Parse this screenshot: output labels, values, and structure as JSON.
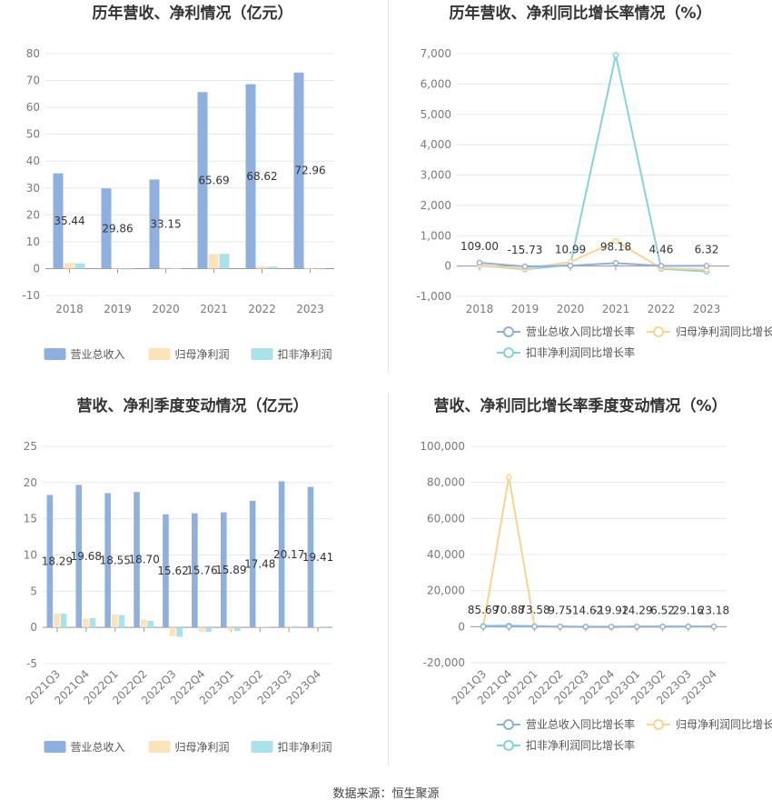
{
  "source_label": "数据来源：恒生聚源",
  "colors": {
    "revenue": "#8eb0de",
    "net_profit": "#fde3b6",
    "deducted_profit": "#a9e2ea",
    "revenue_line": "#8eb0de",
    "net_profit_line": "#fbd48f",
    "deducted_line": "#86d3dc",
    "grid": "#e8e8e8",
    "axis_text": "#7a7a7a",
    "title": "#333333"
  },
  "chart_data": [
    {
      "type": "bar",
      "title": "历年营收、净利情况（亿元）",
      "categories": [
        "2018",
        "2019",
        "2020",
        "2021",
        "2022",
        "2023"
      ],
      "ylim": [
        -10,
        80
      ],
      "yticks": [
        -10,
        0,
        10,
        20,
        30,
        40,
        50,
        60,
        70,
        80
      ],
      "series": [
        {
          "name": "营业总收入",
          "values": [
            35.44,
            29.86,
            33.15,
            65.69,
            68.62,
            72.96
          ]
        },
        {
          "name": "归母净利润",
          "values": [
            2.1,
            -0.2,
            0.3,
            5.4,
            0.8,
            0.2
          ]
        },
        {
          "name": "扣非净利润",
          "values": [
            1.9,
            -0.3,
            0.1,
            5.5,
            0.7,
            -0.2
          ]
        }
      ],
      "data_labels": [
        "35.44",
        "29.86",
        "33.15",
        "65.69",
        "68.62",
        "72.96"
      ],
      "legend": "bottom"
    },
    {
      "type": "line",
      "title": "历年营收、净利同比增长率情况（%）",
      "categories": [
        "2018",
        "2019",
        "2020",
        "2021",
        "2022",
        "2023"
      ],
      "ylim": [
        -1000,
        7000
      ],
      "yticks": [
        -1000,
        0,
        1000,
        2000,
        3000,
        4000,
        5000,
        6000,
        7000
      ],
      "ytick_labels": [
        "-1,000",
        "0",
        "1,000",
        "2,000",
        "3,000",
        "4,000",
        "5,000",
        "6,000",
        "7,000"
      ],
      "series": [
        {
          "name": "营业总收入同比增长率",
          "values": [
            109.0,
            -15.73,
            10.99,
            98.18,
            4.46,
            6.32
          ]
        },
        {
          "name": "归母净利润同比增长率",
          "values": [
            30,
            -90,
            130,
            820,
            -70,
            -120
          ]
        },
        {
          "name": "扣非净利润同比增长率",
          "values": [
            20,
            -110,
            40,
            6950,
            -90,
            -180
          ]
        }
      ],
      "data_labels": [
        "109.00",
        "-15.73",
        "10.99",
        "98.18",
        "4.46",
        "6.32"
      ],
      "legend": "bottom"
    },
    {
      "type": "bar",
      "title": "营收、净利季度变动情况（亿元）",
      "categories": [
        "2021Q3",
        "2021Q4",
        "2022Q1",
        "2022Q2",
        "2022Q3",
        "2022Q4",
        "2023Q1",
        "2023Q2",
        "2023Q3",
        "2023Q4"
      ],
      "ylim": [
        -5,
        25
      ],
      "yticks": [
        -5,
        0,
        5,
        10,
        15,
        20,
        25
      ],
      "series": [
        {
          "name": "营业总收入",
          "values": [
            18.29,
            19.68,
            18.55,
            18.7,
            15.62,
            15.76,
            15.89,
            17.48,
            20.17,
            19.41
          ]
        },
        {
          "name": "归母净利润",
          "values": [
            1.9,
            1.2,
            1.8,
            1.1,
            -1.2,
            -0.6,
            -0.4,
            0.1,
            0.2,
            0.1
          ]
        },
        {
          "name": "扣非净利润",
          "values": [
            1.9,
            1.3,
            1.7,
            0.9,
            -1.3,
            -0.6,
            -0.5,
            0.1,
            0.2,
            -0.1
          ]
        }
      ],
      "data_labels": [
        "18.29",
        "19.68",
        "18.55",
        "18.70",
        "15.62",
        "15.76",
        "15.89",
        "17.48",
        "20.17",
        "19.41"
      ],
      "legend": "bottom"
    },
    {
      "type": "line",
      "title": "营收、净利同比增长率季度变动情况（%）",
      "categories": [
        "2021Q3",
        "2021Q4",
        "2022Q1",
        "2022Q2",
        "2022Q3",
        "2022Q4",
        "2023Q1",
        "2023Q2",
        "2023Q3",
        "2023Q4"
      ],
      "ylim": [
        -20000,
        100000
      ],
      "yticks": [
        -20000,
        0,
        20000,
        40000,
        60000,
        80000,
        100000
      ],
      "ytick_labels": [
        "-20,000",
        "0",
        "20,000",
        "40,000",
        "60,000",
        "80,000",
        "100,000"
      ],
      "series": [
        {
          "name": "营业总收入同比增长率",
          "values": [
            85.69,
            70.88,
            73.58,
            9.75,
            -14.62,
            -19.92,
            14.29,
            6.52,
            29.16,
            23.18
          ]
        },
        {
          "name": "归母净利润同比增长率",
          "values": [
            300,
            83000,
            400,
            100,
            -200,
            -300,
            100,
            50,
            200,
            150
          ]
        },
        {
          "name": "扣非净利润同比增长率",
          "values": [
            500,
            600,
            300,
            100,
            -200,
            -250,
            100,
            50,
            150,
            100
          ]
        }
      ],
      "data_labels": [
        "85.69",
        "70.88",
        "73.58",
        "9.75",
        "-14.62",
        "-19.92",
        "14.29",
        "6.52",
        "29.16",
        "23.18"
      ],
      "legend": "bottom"
    }
  ]
}
